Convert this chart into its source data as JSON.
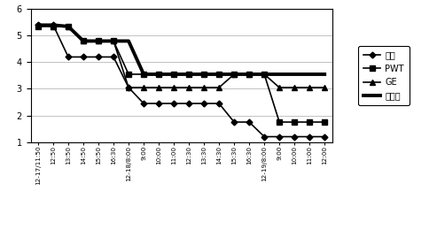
{
  "x_labels": [
    "12-17/11:50",
    "12:50",
    "13:50",
    "14:50",
    "15:50",
    "16:30",
    "12-18/8:00",
    "9:00",
    "10:00",
    "11:00",
    "12:30",
    "13:30",
    "14:30",
    "15:30",
    "16:30",
    "12-19/8:00",
    "9:00",
    "10:00",
    "11:00",
    "12:00"
  ],
  "kongbai": [
    5.4,
    5.4,
    4.2,
    4.2,
    4.2,
    4.2,
    3.05,
    2.45,
    2.45,
    2.45,
    2.45,
    2.45,
    2.45,
    1.75,
    1.75,
    1.2,
    1.2,
    1.2,
    1.2,
    1.2
  ],
  "pwt": [
    5.35,
    5.35,
    5.35,
    4.8,
    4.8,
    4.8,
    3.55,
    3.55,
    3.55,
    3.55,
    3.55,
    3.55,
    3.55,
    3.55,
    3.55,
    3.55,
    1.75,
    1.75,
    1.75,
    1.75
  ],
  "ge": [
    5.4,
    5.35,
    5.35,
    4.8,
    4.8,
    4.8,
    3.05,
    3.05,
    3.05,
    3.05,
    3.05,
    3.05,
    3.05,
    3.55,
    3.55,
    3.55,
    3.05,
    3.05,
    3.05,
    3.05
  ],
  "huali": [
    5.4,
    5.4,
    5.35,
    4.8,
    4.8,
    4.8,
    4.8,
    3.55,
    3.55,
    3.55,
    3.55,
    3.55,
    3.55,
    3.55,
    3.55,
    3.55,
    3.55,
    3.55,
    3.55,
    3.55
  ],
  "ylim": [
    1,
    6
  ],
  "yticks": [
    1,
    2,
    3,
    4,
    5,
    6
  ],
  "legend_labels": [
    "空白",
    "PWT",
    "GE",
    "华理工"
  ],
  "bg_color": "#ffffff",
  "line_color": "#000000",
  "grid_color": "#aaaaaa",
  "figsize": [
    4.93,
    2.59
  ],
  "dpi": 100
}
